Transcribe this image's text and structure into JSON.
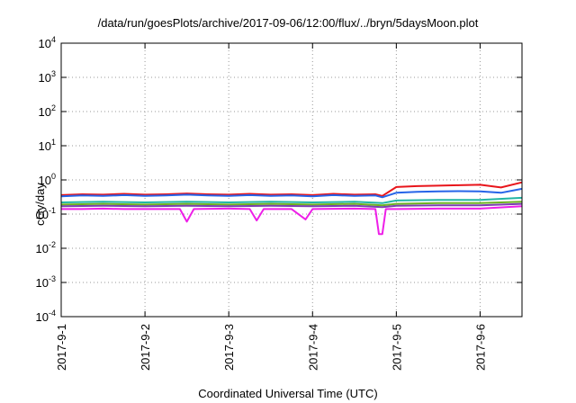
{
  "chart_data": {
    "type": "line",
    "title": "/data/run/goesPlots/archive/2017-09-06/12:00/flux/../bryn/5daysMoon.plot",
    "xlabel": "Coordinated Universal Time (UTC)",
    "ylabel": "cGy/day",
    "yscale": "log",
    "ylim": [
      0.0001,
      10000
    ],
    "y_ticks": [
      {
        "value": 0.0001,
        "base": "10",
        "exp": "-4"
      },
      {
        "value": 0.001,
        "base": "10",
        "exp": "-3"
      },
      {
        "value": 0.01,
        "base": "10",
        "exp": "-2"
      },
      {
        "value": 0.1,
        "base": "10",
        "exp": "-1"
      },
      {
        "value": 1,
        "base": "10",
        "exp": "0"
      },
      {
        "value": 10,
        "base": "10",
        "exp": "1"
      },
      {
        "value": 100,
        "base": "10",
        "exp": "2"
      },
      {
        "value": 1000,
        "base": "10",
        "exp": "3"
      },
      {
        "value": 10000,
        "base": "10",
        "exp": "4"
      }
    ],
    "x_range": [
      "2017-09-01T00:00",
      "2017-09-06T12:00"
    ],
    "x_ticks": [
      {
        "value": "2017-09-01T00:00",
        "label": "2017-9-1"
      },
      {
        "value": "2017-09-02T00:00",
        "label": "2017-9-2"
      },
      {
        "value": "2017-09-03T00:00",
        "label": "2017-9-3"
      },
      {
        "value": "2017-09-04T00:00",
        "label": "2017-9-4"
      },
      {
        "value": "2017-09-05T00:00",
        "label": "2017-9-5"
      },
      {
        "value": "2017-09-06T00:00",
        "label": "2017-9-6"
      }
    ],
    "grid": true,
    "series": [
      {
        "color": "#e8151b",
        "values": [
          [
            "2017-09-01T00:00",
            0.36
          ],
          [
            "2017-09-01T06:00",
            0.38
          ],
          [
            "2017-09-01T12:00",
            0.37
          ],
          [
            "2017-09-01T18:00",
            0.39
          ],
          [
            "2017-09-02T00:00",
            0.37
          ],
          [
            "2017-09-02T06:00",
            0.38
          ],
          [
            "2017-09-02T12:00",
            0.4
          ],
          [
            "2017-09-02T18:00",
            0.38
          ],
          [
            "2017-09-03T00:00",
            0.37
          ],
          [
            "2017-09-03T06:00",
            0.39
          ],
          [
            "2017-09-03T12:00",
            0.37
          ],
          [
            "2017-09-03T18:00",
            0.38
          ],
          [
            "2017-09-04T00:00",
            0.36
          ],
          [
            "2017-09-04T06:00",
            0.39
          ],
          [
            "2017-09-04T12:00",
            0.37
          ],
          [
            "2017-09-04T18:00",
            0.38
          ],
          [
            "2017-09-04T20:00",
            0.34
          ],
          [
            "2017-09-05T00:00",
            0.62
          ],
          [
            "2017-09-05T06:00",
            0.66
          ],
          [
            "2017-09-05T12:00",
            0.68
          ],
          [
            "2017-09-05T18:00",
            0.7
          ],
          [
            "2017-09-06T00:00",
            0.72
          ],
          [
            "2017-09-06T06:00",
            0.6
          ],
          [
            "2017-09-06T12:00",
            0.85
          ]
        ]
      },
      {
        "color": "#2664e8",
        "values": [
          [
            "2017-09-01T00:00",
            0.33
          ],
          [
            "2017-09-01T06:00",
            0.35
          ],
          [
            "2017-09-01T12:00",
            0.34
          ],
          [
            "2017-09-01T18:00",
            0.36
          ],
          [
            "2017-09-02T00:00",
            0.34
          ],
          [
            "2017-09-02T06:00",
            0.35
          ],
          [
            "2017-09-02T12:00",
            0.37
          ],
          [
            "2017-09-02T18:00",
            0.35
          ],
          [
            "2017-09-03T00:00",
            0.34
          ],
          [
            "2017-09-03T06:00",
            0.36
          ],
          [
            "2017-09-03T12:00",
            0.34
          ],
          [
            "2017-09-03T18:00",
            0.35
          ],
          [
            "2017-09-04T00:00",
            0.33
          ],
          [
            "2017-09-04T06:00",
            0.36
          ],
          [
            "2017-09-04T12:00",
            0.34
          ],
          [
            "2017-09-04T18:00",
            0.35
          ],
          [
            "2017-09-04T20:00",
            0.31
          ],
          [
            "2017-09-05T00:00",
            0.42
          ],
          [
            "2017-09-05T06:00",
            0.45
          ],
          [
            "2017-09-05T12:00",
            0.46
          ],
          [
            "2017-09-05T18:00",
            0.47
          ],
          [
            "2017-09-06T00:00",
            0.46
          ],
          [
            "2017-09-06T06:00",
            0.42
          ],
          [
            "2017-09-06T12:00",
            0.55
          ]
        ]
      },
      {
        "color": "#21b5a4",
        "values": [
          [
            "2017-09-01T00:00",
            0.22
          ],
          [
            "2017-09-01T12:00",
            0.23
          ],
          [
            "2017-09-02T00:00",
            0.22
          ],
          [
            "2017-09-02T12:00",
            0.23
          ],
          [
            "2017-09-03T00:00",
            0.22
          ],
          [
            "2017-09-03T12:00",
            0.23
          ],
          [
            "2017-09-04T00:00",
            0.22
          ],
          [
            "2017-09-04T12:00",
            0.23
          ],
          [
            "2017-09-04T20:00",
            0.21
          ],
          [
            "2017-09-05T00:00",
            0.25
          ],
          [
            "2017-09-05T12:00",
            0.26
          ],
          [
            "2017-09-06T00:00",
            0.26
          ],
          [
            "2017-09-06T12:00",
            0.3
          ]
        ]
      },
      {
        "color": "#6db21f",
        "values": [
          [
            "2017-09-01T00:00",
            0.19
          ],
          [
            "2017-09-01T12:00",
            0.2
          ],
          [
            "2017-09-02T00:00",
            0.19
          ],
          [
            "2017-09-02T12:00",
            0.2
          ],
          [
            "2017-09-03T00:00",
            0.19
          ],
          [
            "2017-09-03T12:00",
            0.2
          ],
          [
            "2017-09-04T00:00",
            0.19
          ],
          [
            "2017-09-04T12:00",
            0.2
          ],
          [
            "2017-09-04T20:00",
            0.18
          ],
          [
            "2017-09-05T00:00",
            0.2
          ],
          [
            "2017-09-05T12:00",
            0.21
          ],
          [
            "2017-09-06T00:00",
            0.21
          ],
          [
            "2017-09-06T12:00",
            0.23
          ]
        ]
      },
      {
        "color": "#7a3fb0",
        "values": [
          [
            "2017-09-01T00:00",
            0.17
          ],
          [
            "2017-09-01T12:00",
            0.175
          ],
          [
            "2017-09-02T00:00",
            0.17
          ],
          [
            "2017-09-02T12:00",
            0.175
          ],
          [
            "2017-09-03T00:00",
            0.17
          ],
          [
            "2017-09-03T12:00",
            0.175
          ],
          [
            "2017-09-04T00:00",
            0.17
          ],
          [
            "2017-09-04T12:00",
            0.175
          ],
          [
            "2017-09-04T20:00",
            0.16
          ],
          [
            "2017-09-05T00:00",
            0.175
          ],
          [
            "2017-09-05T12:00",
            0.18
          ],
          [
            "2017-09-06T00:00",
            0.18
          ],
          [
            "2017-09-06T12:00",
            0.2
          ]
        ]
      },
      {
        "color": "#ee1fe8",
        "values": [
          [
            "2017-09-01T00:00",
            0.14
          ],
          [
            "2017-09-01T06:00",
            0.14
          ],
          [
            "2017-09-01T12:00",
            0.145
          ],
          [
            "2017-09-01T18:00",
            0.14
          ],
          [
            "2017-09-02T00:00",
            0.14
          ],
          [
            "2017-09-02T10:00",
            0.14
          ],
          [
            "2017-09-02T12:00",
            0.06
          ],
          [
            "2017-09-02T14:00",
            0.14
          ],
          [
            "2017-09-03T00:00",
            0.145
          ],
          [
            "2017-09-03T06:00",
            0.14
          ],
          [
            "2017-09-03T08:00",
            0.065
          ],
          [
            "2017-09-03T10:00",
            0.14
          ],
          [
            "2017-09-03T18:00",
            0.14
          ],
          [
            "2017-09-03T22:00",
            0.07
          ],
          [
            "2017-09-04T00:00",
            0.14
          ],
          [
            "2017-09-04T12:00",
            0.145
          ],
          [
            "2017-09-04T18:00",
            0.14
          ],
          [
            "2017-09-04T19:00",
            0.026
          ],
          [
            "2017-09-04T20:00",
            0.026
          ],
          [
            "2017-09-04T21:00",
            0.14
          ],
          [
            "2017-09-05T00:00",
            0.14
          ],
          [
            "2017-09-05T12:00",
            0.145
          ],
          [
            "2017-09-06T00:00",
            0.145
          ],
          [
            "2017-09-06T12:00",
            0.17
          ]
        ]
      }
    ]
  }
}
